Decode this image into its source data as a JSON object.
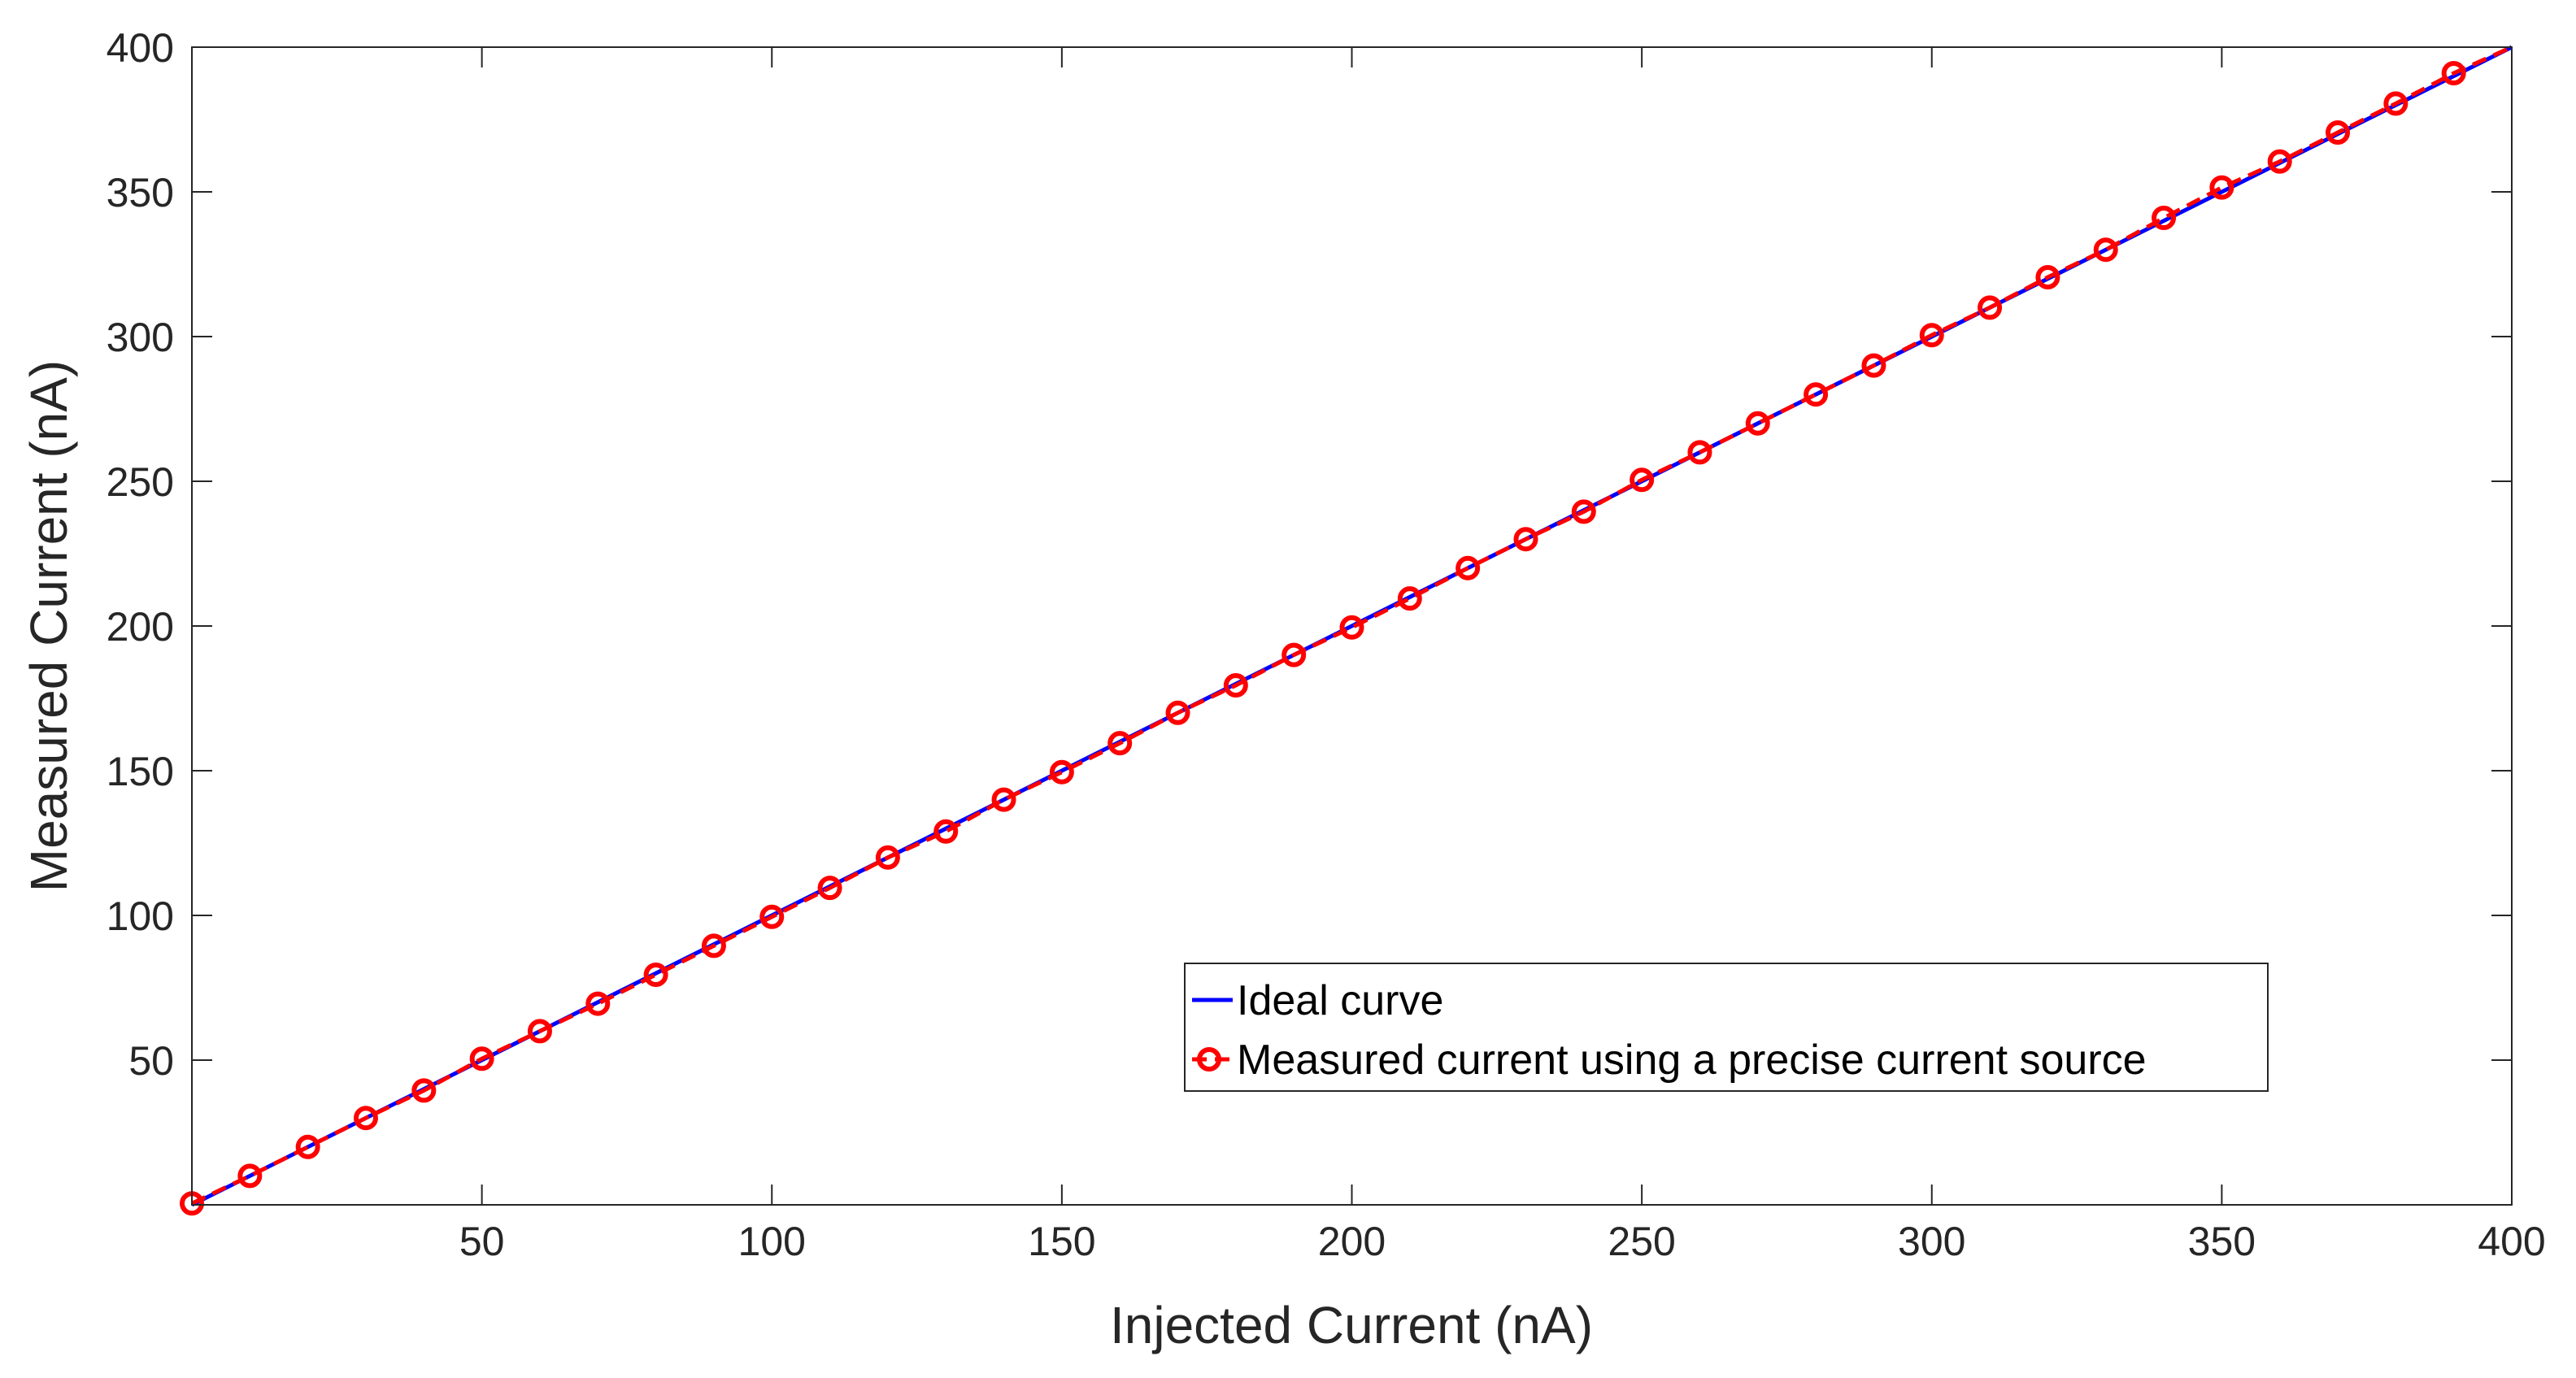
{
  "chart_data": {
    "type": "line",
    "title": "",
    "xlabel": "Injected Current (nA)",
    "ylabel": "Measured Current (nA)",
    "xlim": [
      0,
      400
    ],
    "ylim": [
      0,
      400
    ],
    "xticks": [
      50,
      100,
      150,
      200,
      250,
      300,
      350,
      400
    ],
    "yticks": [
      50,
      100,
      150,
      200,
      250,
      300,
      350,
      400
    ],
    "grid": false,
    "legend_position": "lower-right",
    "series": [
      {
        "name": "Ideal curve",
        "style": "solid line",
        "color": "#0000ff",
        "x": [
          0,
          400
        ],
        "y": [
          0,
          400
        ]
      },
      {
        "name": "Measured current using a precise current source",
        "style": "dashed line with circle markers",
        "color": "#ff0000",
        "x": [
          0,
          10,
          20,
          30,
          40,
          50,
          60,
          70,
          80,
          90,
          100,
          110,
          120,
          130,
          140,
          150,
          160,
          170,
          180,
          190,
          200,
          210,
          220,
          230,
          240,
          250,
          260,
          270,
          280,
          290,
          300,
          310,
          320,
          330,
          340,
          350,
          360,
          370,
          380,
          390,
          400
        ],
        "y": [
          0.5,
          10,
          20,
          30,
          39.5,
          50.5,
          60,
          69.5,
          79.5,
          89.5,
          99.5,
          109.5,
          120,
          129,
          140,
          149.5,
          159.5,
          170,
          179.5,
          190,
          199.5,
          209.5,
          220,
          230,
          239.5,
          250.5,
          260,
          270,
          280,
          290,
          300.5,
          310,
          320.5,
          330,
          341,
          351.5,
          360.5,
          370.5,
          380.5,
          391,
          400
        ]
      }
    ]
  }
}
